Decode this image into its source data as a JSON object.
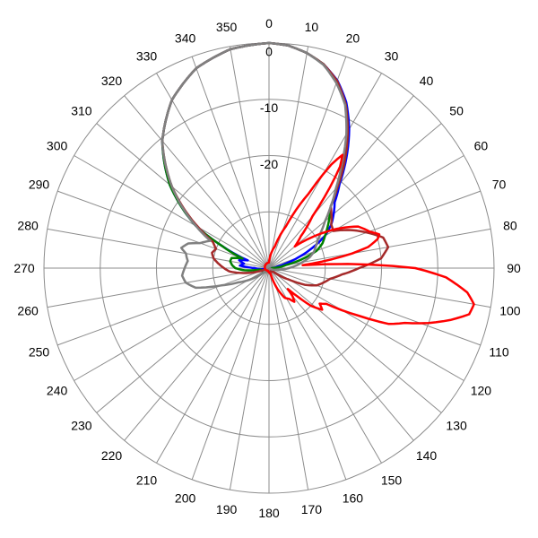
{
  "chart_data": {
    "type": "polar-line",
    "angle_unit": "degrees",
    "angle_labels": [
      "0",
      "10",
      "20",
      "30",
      "40",
      "50",
      "60",
      "70",
      "80",
      "90",
      "100",
      "110",
      "120",
      "130",
      "140",
      "150",
      "160",
      "170",
      "180",
      "190",
      "200",
      "210",
      "220",
      "230",
      "240",
      "250",
      "260",
      "270",
      "280",
      "290",
      "300",
      "310",
      "320",
      "330",
      "340",
      "350"
    ],
    "ring_labels": [
      "0",
      "-10",
      "-20"
    ],
    "rlim": [
      -40,
      0
    ],
    "ring_values": [
      0,
      -10,
      -20,
      -30
    ],
    "grid": true,
    "series": [
      {
        "color": "#0000ff",
        "points": [
          [
            0,
            0
          ],
          [
            5,
            -0.3
          ],
          [
            10,
            -1.2
          ],
          [
            15,
            -2.5
          ],
          [
            20,
            -4.5
          ],
          [
            25,
            -7.5
          ],
          [
            30,
            -11.5
          ],
          [
            35,
            -16
          ],
          [
            40,
            -20.5
          ],
          [
            45,
            -23.5
          ],
          [
            50,
            -25
          ],
          [
            55,
            -26.5
          ],
          [
            60,
            -28.5
          ],
          [
            65,
            -31.5
          ],
          [
            70,
            -34.5
          ],
          [
            75,
            -37
          ],
          [
            80,
            -38.5
          ],
          [
            90,
            -39.5
          ],
          [
            120,
            -39.8
          ],
          [
            180,
            -39.8
          ],
          [
            260,
            -39
          ],
          [
            265,
            -38.3
          ],
          [
            270,
            -37.5
          ],
          [
            275,
            -34.8
          ],
          [
            280,
            -35.5
          ],
          [
            285,
            -34.5
          ],
          [
            290,
            -36
          ],
          [
            295,
            -31
          ],
          [
            300,
            -25
          ],
          [
            310,
            -17
          ],
          [
            320,
            -10.5
          ],
          [
            330,
            -5.5
          ],
          [
            340,
            -2.2
          ],
          [
            350,
            -0.5
          ],
          [
            360,
            0
          ]
        ]
      },
      {
        "color": "#008000",
        "points": [
          [
            0,
            0
          ],
          [
            5,
            -0.3
          ],
          [
            10,
            -1.2
          ],
          [
            15,
            -2.5
          ],
          [
            20,
            -4.8
          ],
          [
            25,
            -7.8
          ],
          [
            30,
            -12
          ],
          [
            35,
            -16.5
          ],
          [
            40,
            -21
          ],
          [
            45,
            -24.5
          ],
          [
            50,
            -26
          ],
          [
            55,
            -27.3
          ],
          [
            60,
            -28.5
          ],
          [
            65,
            -29.5
          ],
          [
            70,
            -31
          ],
          [
            75,
            -34
          ],
          [
            80,
            -37
          ],
          [
            90,
            -39.5
          ],
          [
            120,
            -39.8
          ],
          [
            180,
            -39.8
          ],
          [
            260,
            -38.5
          ],
          [
            265,
            -35.6
          ],
          [
            270,
            -34
          ],
          [
            275,
            -33.4
          ],
          [
            280,
            -33
          ],
          [
            285,
            -33.1
          ],
          [
            290,
            -35
          ],
          [
            295,
            -31
          ],
          [
            300,
            -25
          ],
          [
            310,
            -17
          ],
          [
            320,
            -10.5
          ],
          [
            330,
            -5.5
          ],
          [
            340,
            -2.2
          ],
          [
            350,
            -0.5
          ],
          [
            360,
            0
          ]
        ]
      },
      {
        "color": "#a52a2a",
        "points": [
          [
            0,
            0
          ],
          [
            5,
            -0.3
          ],
          [
            10,
            -1.2
          ],
          [
            15,
            -2.5
          ],
          [
            20,
            -4.6
          ],
          [
            25,
            -7.8
          ],
          [
            30,
            -12
          ],
          [
            35,
            -16.5
          ],
          [
            40,
            -21
          ],
          [
            45,
            -24.5
          ],
          [
            50,
            -25.5
          ],
          [
            55,
            -26.5
          ],
          [
            60,
            -26.8
          ],
          [
            65,
            -24
          ],
          [
            70,
            -21.5
          ],
          [
            75,
            -19
          ],
          [
            80,
            -18.5
          ],
          [
            85,
            -20
          ],
          [
            90,
            -24
          ],
          [
            95,
            -27
          ],
          [
            100,
            -29
          ],
          [
            105,
            -30
          ],
          [
            110,
            -31
          ],
          [
            115,
            -33
          ],
          [
            120,
            -36
          ],
          [
            130,
            -39
          ],
          [
            180,
            -39.8
          ],
          [
            250,
            -39
          ],
          [
            260,
            -35
          ],
          [
            265,
            -33
          ],
          [
            270,
            -32
          ],
          [
            275,
            -31
          ],
          [
            280,
            -30
          ],
          [
            285,
            -29.5
          ],
          [
            290,
            -30
          ],
          [
            295,
            -29
          ],
          [
            300,
            -25.5
          ],
          [
            310,
            -17.5
          ],
          [
            320,
            -10.5
          ],
          [
            330,
            -5.5
          ],
          [
            340,
            -2.2
          ],
          [
            350,
            -0.5
          ],
          [
            360,
            0
          ]
        ]
      },
      {
        "color": "#808080",
        "points": [
          [
            0,
            0
          ],
          [
            5,
            -0.3
          ],
          [
            10,
            -1.2
          ],
          [
            15,
            -2.6
          ],
          [
            20,
            -5
          ],
          [
            25,
            -8
          ],
          [
            30,
            -12.5
          ],
          [
            35,
            -17.5
          ],
          [
            40,
            -21.5
          ],
          [
            45,
            -24.5
          ],
          [
            50,
            -27
          ],
          [
            55,
            -28.7
          ],
          [
            60,
            -30
          ],
          [
            65,
            -30.8
          ],
          [
            70,
            -31.5
          ],
          [
            75,
            -32.5
          ],
          [
            80,
            -34
          ],
          [
            90,
            -36.5
          ],
          [
            100,
            -38.5
          ],
          [
            120,
            -39.8
          ],
          [
            180,
            -39.8
          ],
          [
            230,
            -39
          ],
          [
            245,
            -34
          ],
          [
            250,
            -31
          ],
          [
            255,
            -26.5
          ],
          [
            260,
            -25
          ],
          [
            265,
            -24.5
          ],
          [
            270,
            -25
          ],
          [
            275,
            -25.5
          ],
          [
            280,
            -25
          ],
          [
            283,
            -24
          ],
          [
            287,
            -25
          ],
          [
            290,
            -27
          ],
          [
            295,
            -28.5
          ],
          [
            300,
            -25
          ],
          [
            310,
            -17.5
          ],
          [
            320,
            -10.5
          ],
          [
            330,
            -5.5
          ],
          [
            340,
            -2.2
          ],
          [
            350,
            -0.5
          ],
          [
            360,
            0
          ]
        ]
      },
      {
        "color": "#ff0000",
        "points": [
          [
            0,
            -39
          ],
          [
            15,
            -36
          ],
          [
            22,
            -32
          ],
          [
            28,
            -25
          ],
          [
            31,
            -18.5
          ],
          [
            33,
            -16
          ],
          [
            35,
            -18
          ],
          [
            40,
            -28
          ],
          [
            45,
            -32
          ],
          [
            50,
            -34
          ],
          [
            55,
            -30
          ],
          [
            60,
            -26
          ],
          [
            65,
            -22.5
          ],
          [
            70,
            -21
          ],
          [
            73,
            -19.5
          ],
          [
            75,
            -20
          ],
          [
            78,
            -22
          ],
          [
            80,
            -25
          ],
          [
            83,
            -30.5
          ],
          [
            85,
            -34
          ],
          [
            88,
            -22
          ],
          [
            90,
            -14
          ],
          [
            93,
            -8.5
          ],
          [
            97,
            -4.5
          ],
          [
            100,
            -3
          ],
          [
            103,
            -3.5
          ],
          [
            106,
            -6.5
          ],
          [
            109,
            -10
          ],
          [
            112,
            -14
          ],
          [
            115,
            -16.5
          ],
          [
            118,
            -22
          ],
          [
            122,
            -28
          ],
          [
            125,
            -29
          ],
          [
            128,
            -28
          ],
          [
            132,
            -30
          ],
          [
            135,
            -33
          ],
          [
            138,
            -35
          ],
          [
            140,
            -33.5
          ],
          [
            143,
            -32.5
          ],
          [
            147,
            -33.5
          ],
          [
            152,
            -34
          ],
          [
            158,
            -36
          ],
          [
            165,
            -39
          ],
          [
            200,
            -39.5
          ],
          [
            360,
            -39
          ]
        ]
      }
    ]
  }
}
